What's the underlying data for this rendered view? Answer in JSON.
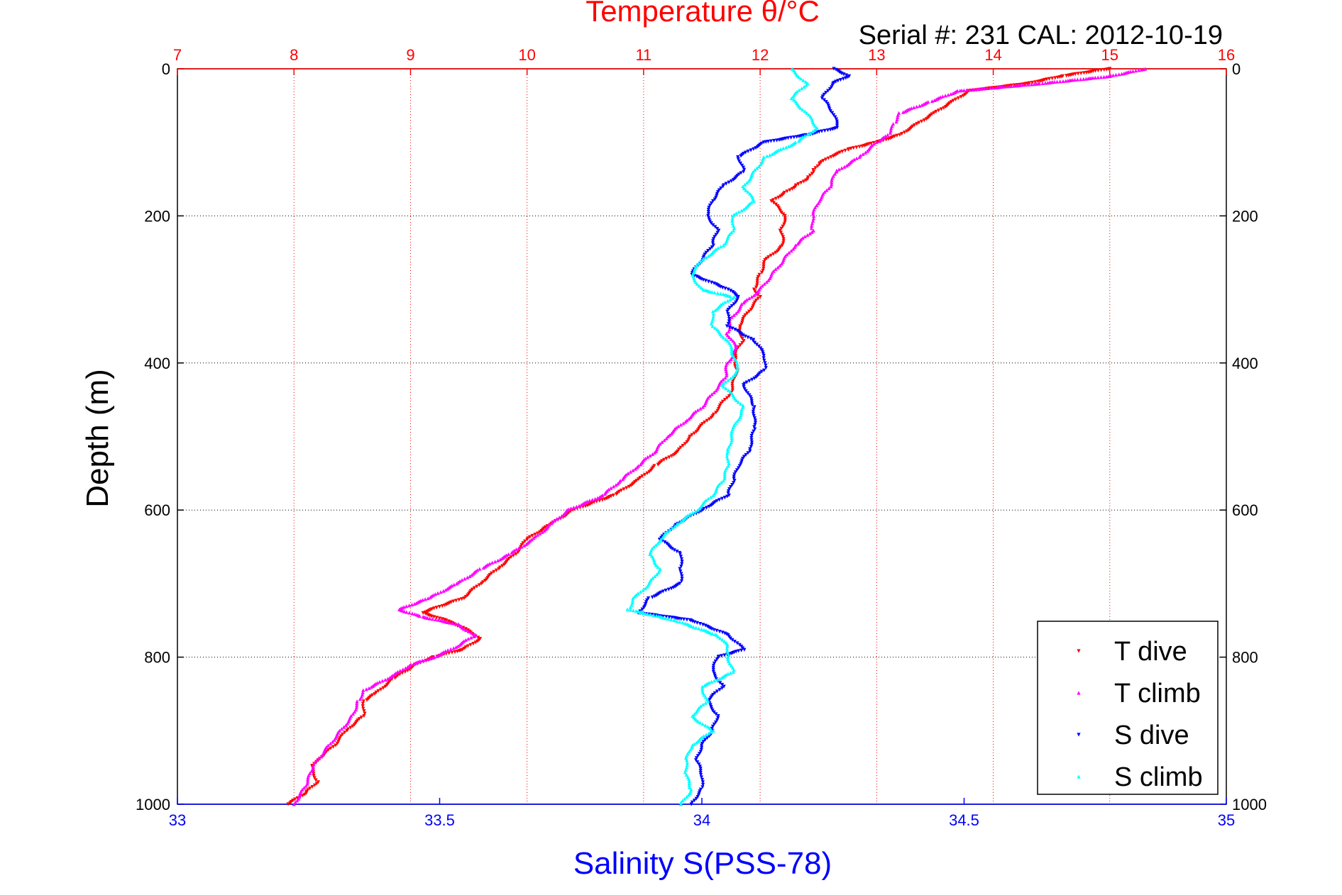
{
  "chart_data": {
    "type": "scatter",
    "title": "Temperature θ/°C",
    "subtitle": "Serial #: 231  CAL: 2012-10-19",
    "xlabel_top": "Temperature θ/°C",
    "xlabel_bottom": "Salinity S(PSS-78)",
    "ylabel": "Depth (m)",
    "ylim": [
      0,
      1000
    ],
    "y_reversed": true,
    "xlim_top": [
      7,
      16
    ],
    "xlim_bottom": [
      33,
      35
    ],
    "yticks": [
      "0",
      "200",
      "400",
      "600",
      "800",
      "1000"
    ],
    "xticks_top": [
      "7",
      "8",
      "9",
      "10",
      "11",
      "12",
      "13",
      "14",
      "15",
      "16"
    ],
    "xticks_bottom": [
      "33",
      "33.5",
      "34",
      "34.5",
      "35"
    ],
    "grid": true,
    "legend_position": "bottom-right",
    "series": [
      {
        "name": "T dive",
        "axis": "top",
        "color": "#ff0000",
        "points": [
          [
            15.0,
            0
          ],
          [
            14.6,
            10
          ],
          [
            14.3,
            20
          ],
          [
            13.8,
            30
          ],
          [
            13.65,
            45
          ],
          [
            13.5,
            60
          ],
          [
            13.35,
            75
          ],
          [
            13.2,
            90
          ],
          [
            13.0,
            100
          ],
          [
            12.75,
            110
          ],
          [
            12.6,
            120
          ],
          [
            12.5,
            130
          ],
          [
            12.45,
            140
          ],
          [
            12.4,
            150
          ],
          [
            12.3,
            160
          ],
          [
            12.2,
            170
          ],
          [
            12.1,
            180
          ],
          [
            12.22,
            200
          ],
          [
            12.18,
            220
          ],
          [
            12.2,
            240
          ],
          [
            12.05,
            260
          ],
          [
            12.0,
            280
          ],
          [
            11.95,
            300
          ],
          [
            12.0,
            310
          ],
          [
            11.9,
            330
          ],
          [
            11.82,
            350
          ],
          [
            11.85,
            370
          ],
          [
            11.78,
            390
          ],
          [
            11.8,
            410
          ],
          [
            11.75,
            440
          ],
          [
            11.6,
            470
          ],
          [
            11.4,
            500
          ],
          [
            11.3,
            520
          ],
          [
            11.1,
            540
          ],
          [
            10.95,
            560
          ],
          [
            10.75,
            580
          ],
          [
            10.4,
            600
          ],
          [
            10.2,
            620
          ],
          [
            10.0,
            640
          ],
          [
            9.9,
            660
          ],
          [
            9.75,
            680
          ],
          [
            9.6,
            700
          ],
          [
            9.45,
            720
          ],
          [
            9.1,
            740
          ],
          [
            9.3,
            750
          ],
          [
            9.45,
            760
          ],
          [
            9.6,
            775
          ],
          [
            9.45,
            790
          ],
          [
            9.2,
            800
          ],
          [
            9.05,
            810
          ],
          [
            8.85,
            830
          ],
          [
            8.7,
            850
          ],
          [
            8.6,
            860
          ],
          [
            8.6,
            880
          ],
          [
            8.45,
            900
          ],
          [
            8.35,
            920
          ],
          [
            8.2,
            940
          ],
          [
            8.15,
            950
          ],
          [
            8.2,
            970
          ],
          [
            8.1,
            985
          ],
          [
            7.95,
            1000
          ]
        ]
      },
      {
        "name": "T climb",
        "axis": "top",
        "color": "#ff00ff",
        "points": [
          [
            15.3,
            0
          ],
          [
            15.0,
            10
          ],
          [
            14.4,
            20
          ],
          [
            13.7,
            30
          ],
          [
            13.45,
            45
          ],
          [
            13.2,
            60
          ],
          [
            13.15,
            75
          ],
          [
            13.1,
            90
          ],
          [
            13.0,
            100
          ],
          [
            12.85,
            120
          ],
          [
            12.65,
            140
          ],
          [
            12.6,
            160
          ],
          [
            12.5,
            180
          ],
          [
            12.45,
            200
          ],
          [
            12.45,
            220
          ],
          [
            12.3,
            240
          ],
          [
            12.2,
            260
          ],
          [
            12.1,
            280
          ],
          [
            12.0,
            300
          ],
          [
            11.85,
            320
          ],
          [
            11.75,
            340
          ],
          [
            11.72,
            360
          ],
          [
            11.8,
            380
          ],
          [
            11.72,
            400
          ],
          [
            11.7,
            420
          ],
          [
            11.6,
            440
          ],
          [
            11.5,
            460
          ],
          [
            11.35,
            480
          ],
          [
            11.2,
            500
          ],
          [
            11.1,
            520
          ],
          [
            10.95,
            540
          ],
          [
            10.8,
            560
          ],
          [
            10.65,
            580
          ],
          [
            10.35,
            600
          ],
          [
            10.2,
            620
          ],
          [
            10.05,
            640
          ],
          [
            9.85,
            660
          ],
          [
            9.6,
            680
          ],
          [
            9.4,
            700
          ],
          [
            9.15,
            720
          ],
          [
            8.9,
            735
          ],
          [
            9.1,
            745
          ],
          [
            9.4,
            755
          ],
          [
            9.55,
            770
          ],
          [
            9.4,
            785
          ],
          [
            9.2,
            800
          ],
          [
            9.0,
            810
          ],
          [
            8.85,
            825
          ],
          [
            8.6,
            845
          ],
          [
            8.55,
            860
          ],
          [
            8.5,
            880
          ],
          [
            8.4,
            900
          ],
          [
            8.3,
            920
          ],
          [
            8.2,
            940
          ],
          [
            8.15,
            955
          ],
          [
            8.1,
            975
          ],
          [
            8.0,
            1000
          ]
        ]
      },
      {
        "name": "S dive",
        "axis": "bottom",
        "color": "#0000ff",
        "points": [
          [
            34.25,
            0
          ],
          [
            34.28,
            10
          ],
          [
            34.25,
            20
          ],
          [
            34.23,
            40
          ],
          [
            34.25,
            60
          ],
          [
            34.26,
            80
          ],
          [
            34.2,
            90
          ],
          [
            34.12,
            100
          ],
          [
            34.07,
            120
          ],
          [
            34.08,
            140
          ],
          [
            34.04,
            160
          ],
          [
            34.02,
            180
          ],
          [
            34.01,
            200
          ],
          [
            34.03,
            220
          ],
          [
            34.02,
            240
          ],
          [
            34.0,
            260
          ],
          [
            33.98,
            280
          ],
          [
            34.05,
            300
          ],
          [
            34.07,
            310
          ],
          [
            34.05,
            330
          ],
          [
            34.05,
            350
          ],
          [
            34.1,
            370
          ],
          [
            34.12,
            390
          ],
          [
            34.12,
            410
          ],
          [
            34.08,
            430
          ],
          [
            34.1,
            460
          ],
          [
            34.1,
            490
          ],
          [
            34.09,
            520
          ],
          [
            34.07,
            540
          ],
          [
            34.06,
            560
          ],
          [
            34.05,
            580
          ],
          [
            34.0,
            600
          ],
          [
            33.95,
            620
          ],
          [
            33.92,
            640
          ],
          [
            33.96,
            660
          ],
          [
            33.96,
            680
          ],
          [
            33.96,
            700
          ],
          [
            33.9,
            720
          ],
          [
            33.88,
            740
          ],
          [
            33.98,
            750
          ],
          [
            34.05,
            770
          ],
          [
            34.08,
            790
          ],
          [
            34.03,
            800
          ],
          [
            34.02,
            820
          ],
          [
            34.04,
            840
          ],
          [
            34.01,
            860
          ],
          [
            34.03,
            880
          ],
          [
            34.02,
            900
          ],
          [
            34.0,
            920
          ],
          [
            33.99,
            940
          ],
          [
            34.0,
            960
          ],
          [
            34.0,
            980
          ],
          [
            33.98,
            1000
          ]
        ]
      },
      {
        "name": "S climb",
        "axis": "bottom",
        "color": "#00ffff",
        "points": [
          [
            34.17,
            0
          ],
          [
            34.2,
            20
          ],
          [
            34.17,
            40
          ],
          [
            34.2,
            60
          ],
          [
            34.22,
            80
          ],
          [
            34.18,
            100
          ],
          [
            34.12,
            120
          ],
          [
            34.1,
            140
          ],
          [
            34.08,
            160
          ],
          [
            34.1,
            180
          ],
          [
            34.06,
            200
          ],
          [
            34.06,
            220
          ],
          [
            34.04,
            240
          ],
          [
            34.0,
            260
          ],
          [
            33.98,
            280
          ],
          [
            34.0,
            300
          ],
          [
            34.06,
            310
          ],
          [
            34.02,
            330
          ],
          [
            34.02,
            350
          ],
          [
            34.05,
            370
          ],
          [
            34.06,
            390
          ],
          [
            34.07,
            410
          ],
          [
            34.04,
            430
          ],
          [
            34.08,
            460
          ],
          [
            34.06,
            490
          ],
          [
            34.05,
            520
          ],
          [
            34.05,
            540
          ],
          [
            34.04,
            560
          ],
          [
            34.02,
            580
          ],
          [
            33.99,
            600
          ],
          [
            33.95,
            620
          ],
          [
            33.92,
            640
          ],
          [
            33.9,
            660
          ],
          [
            33.92,
            680
          ],
          [
            33.9,
            700
          ],
          [
            33.87,
            720
          ],
          [
            33.86,
            735
          ],
          [
            33.95,
            750
          ],
          [
            34.03,
            770
          ],
          [
            34.05,
            785
          ],
          [
            34.05,
            800
          ],
          [
            34.06,
            820
          ],
          [
            34.0,
            840
          ],
          [
            34.01,
            860
          ],
          [
            33.98,
            880
          ],
          [
            34.02,
            900
          ],
          [
            33.98,
            920
          ],
          [
            33.97,
            940
          ],
          [
            33.97,
            960
          ],
          [
            33.98,
            980
          ],
          [
            33.96,
            1000
          ]
        ]
      }
    ]
  }
}
